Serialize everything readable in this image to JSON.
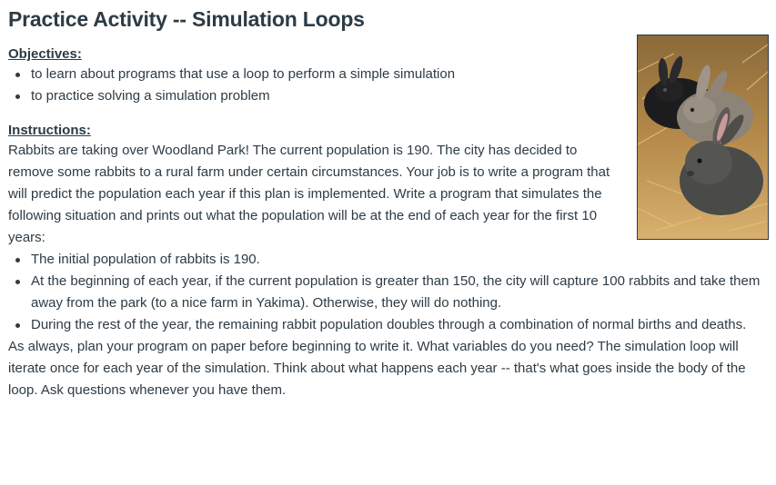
{
  "title": "Practice Activity -- Simulation Loops",
  "objectives": {
    "heading": "Objectives:",
    "items": [
      "to learn about programs that use a loop to perform a simple simulation",
      "to practice solving a simulation problem"
    ]
  },
  "instructions": {
    "heading": "Instructions:",
    "intro": "Rabbits are taking over Woodland Park! The current population is 190. The city has decided to remove some rabbits to a rural farm under certain circumstances. Your job is to write a program that will predict the population each year if this plan is implemented. Write a program that simulates the following situation and prints out what the population will be at the end of each year for the first 10 years:",
    "conditions": [
      "The initial population of rabbits is 190.",
      "At the beginning of each year, if the current population is greater than 150, the city will capture 100 rabbits and take them away from the park (to a nice farm in Yakima). Otherwise, they will do nothing.",
      "During the rest of the year, the remaining rabbit population doubles through a combination of normal births and deaths."
    ],
    "closing": "As always, plan your program on paper before beginning to write it. What variables do you need? The simulation loop will iterate once for each year of the simulation. Think about what happens each year -- that's what goes inside the body of the loop. Ask questions whenever you have them."
  },
  "image": {
    "icon": "rabbits-photo"
  }
}
